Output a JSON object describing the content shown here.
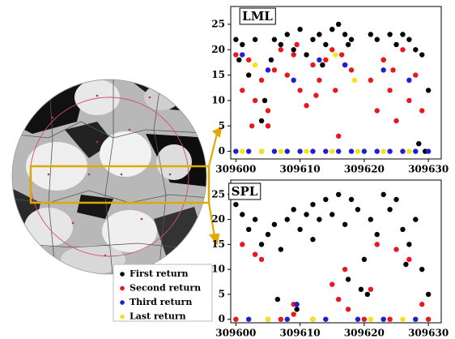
{
  "chart_data": [
    {
      "type": "scatter",
      "title": "LML",
      "xlim": [
        309599.2,
        309632
      ],
      "xticks": [
        309600,
        309610,
        309620,
        309630
      ],
      "ylim": [
        -1.5,
        28.5
      ],
      "yticks": [
        0,
        5,
        10,
        15,
        20,
        25
      ],
      "series": [
        {
          "name": "First return",
          "color": "#000000",
          "x": [
            309600,
            309600.5,
            309601,
            309602,
            309603,
            309604,
            309605,
            309606,
            309607,
            309608,
            309609,
            309610,
            309611,
            309612,
            309613,
            309614,
            309615,
            309616,
            309617,
            309618,
            309621,
            309622,
            309623,
            309624,
            309625,
            309626,
            309627,
            309628,
            309629,
            309630,
            309604.5,
            309605.5,
            309613.5,
            309617.5,
            309629.5,
            309628.5
          ],
          "values": [
            22,
            18,
            21,
            15,
            22,
            6,
            5,
            22,
            21,
            23,
            20,
            24,
            19,
            22,
            23,
            21,
            24,
            25,
            23,
            22,
            23,
            22,
            18,
            23,
            21,
            23,
            22,
            20,
            19,
            12,
            10,
            18,
            17,
            21,
            0,
            1.5
          ]
        },
        {
          "name": "Second return",
          "color": "#e8191b",
          "x": [
            309600,
            309601,
            309602,
            309603,
            309604,
            309605,
            309606,
            309607,
            309608,
            309609,
            309610,
            309611,
            309612,
            309613,
            309614,
            309615,
            309616,
            309617,
            309618,
            309621,
            309622,
            309623,
            309624,
            309625,
            309626,
            309627,
            309628,
            309629,
            309605,
            309609.5,
            309612.5,
            309616.5,
            309624.5,
            309602.5,
            309615.5
          ],
          "values": [
            19,
            12,
            18,
            10,
            14,
            8,
            16,
            20,
            15,
            19,
            12,
            9,
            17,
            14,
            18,
            20,
            3,
            17,
            16,
            14,
            8,
            18,
            12,
            6,
            20,
            10,
            15,
            8,
            5,
            21,
            11,
            19,
            16,
            5,
            12
          ]
        },
        {
          "name": "Third return",
          "color": "#1f1fd0",
          "x": [
            309600,
            309602,
            309604,
            309606,
            309608,
            309610,
            309612,
            309614,
            309616,
            309618,
            309620,
            309622,
            309624,
            309626,
            309628,
            309630,
            309601,
            309605,
            309609,
            309613,
            309617,
            309623,
            309627
          ],
          "values": [
            0,
            0,
            0,
            0,
            0,
            0,
            0,
            0,
            0,
            0,
            0,
            0,
            0,
            0,
            0,
            0,
            19,
            16,
            14,
            18,
            17,
            16,
            14
          ]
        },
        {
          "name": "Last return",
          "color": "#f5e21a",
          "x": [
            309601,
            309604,
            309607,
            309611,
            309615,
            309619,
            309623,
            309627,
            309603,
            309615.5,
            309618.5
          ],
          "values": [
            0,
            0,
            0,
            0,
            0,
            0,
            0,
            0,
            17,
            19,
            14
          ]
        }
      ]
    },
    {
      "type": "scatter",
      "title": "SPL",
      "xlim": [
        309599.2,
        309632
      ],
      "xticks": [
        309600,
        309610,
        309620,
        309630
      ],
      "ylim": [
        -0.7,
        27.9
      ],
      "yticks": [
        0,
        5,
        10,
        15,
        20,
        25
      ],
      "series": [
        {
          "color": "#000000",
          "x": [
            309600,
            309601,
            309602,
            309603,
            309604,
            309605,
            309606,
            309607,
            309608,
            309609,
            309610,
            309611,
            309612,
            309613,
            309614,
            309615,
            309616,
            309617,
            309618,
            309619,
            309620,
            309621,
            309622,
            309623,
            309624,
            309625,
            309626,
            309627,
            309628,
            309629,
            309630,
            309606.5,
            309609.5,
            309617.5,
            309619.5,
            309626.5,
            309612,
            309620.5
          ],
          "values": [
            23,
            21,
            18,
            20,
            15,
            17,
            19,
            14,
            20,
            22,
            18,
            21,
            23,
            20,
            24,
            21,
            25,
            19,
            24,
            22,
            12,
            20,
            17,
            25,
            22,
            24,
            18,
            15,
            20,
            10,
            5,
            4,
            2,
            8,
            6,
            11,
            16,
            5
          ]
        },
        {
          "color": "#e8191b",
          "x": [
            309600,
            309601,
            309603,
            309605,
            309607,
            309609,
            309612,
            309615,
            309616,
            309617,
            309620,
            309621,
            309622,
            309624,
            309625,
            309627,
            309629,
            309630,
            309609,
            309617.5,
            309604
          ],
          "values": [
            0,
            15,
            13,
            0,
            0,
            3,
            0,
            7,
            4,
            10,
            0,
            6,
            15,
            0,
            14,
            12,
            3,
            0,
            1,
            2,
            12
          ]
        },
        {
          "color": "#1f1fd0",
          "x": [
            309602,
            309608,
            309614,
            309619,
            309623,
            309628,
            309609.5
          ],
          "values": [
            0,
            0,
            0,
            0,
            0,
            0,
            3
          ]
        },
        {
          "color": "#f5e21a",
          "x": [
            309605,
            309612,
            309621,
            309626
          ],
          "values": [
            0,
            0,
            0,
            0
          ]
        }
      ]
    }
  ]
}
